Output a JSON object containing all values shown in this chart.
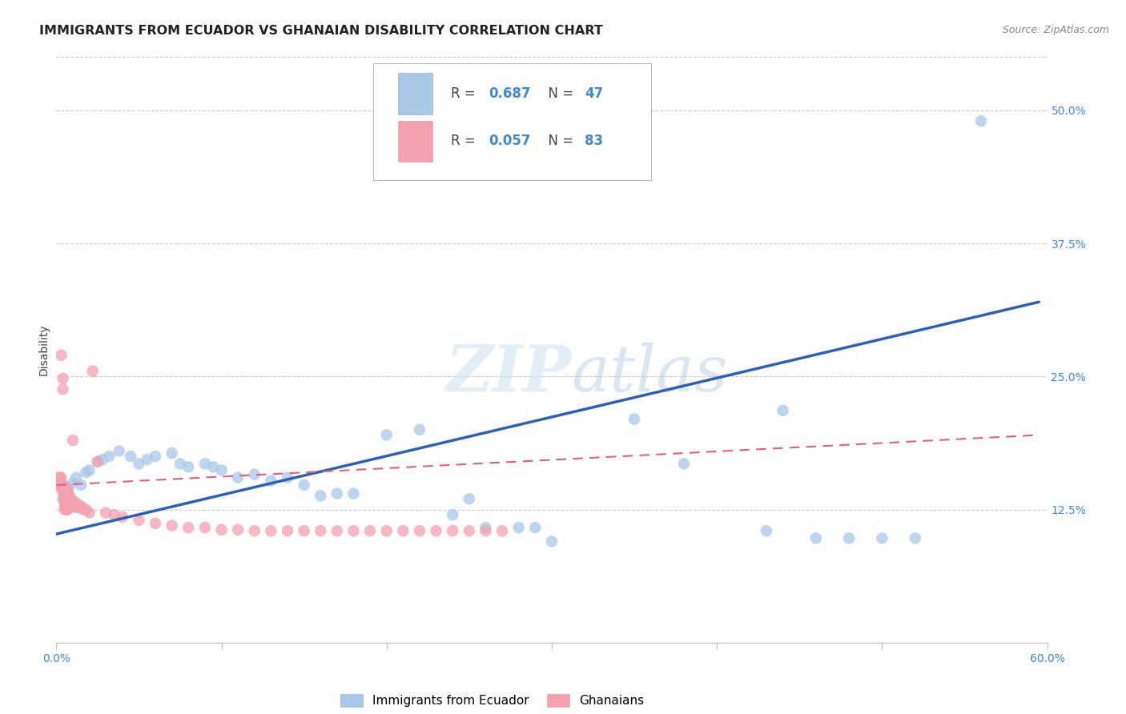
{
  "title": "IMMIGRANTS FROM ECUADOR VS GHANAIAN DISABILITY CORRELATION CHART",
  "source": "Source: ZipAtlas.com",
  "ylabel": "Disability",
  "watermark": "ZIPatlas",
  "xlim": [
    0.0,
    0.6
  ],
  "ylim": [
    0.0,
    0.55
  ],
  "xticks": [
    0.0,
    0.1,
    0.2,
    0.3,
    0.4,
    0.5,
    0.6
  ],
  "yticks": [
    0.125,
    0.25,
    0.375,
    0.5
  ],
  "ytick_labels": [
    "12.5%",
    "25.0%",
    "37.5%",
    "50.0%"
  ],
  "xtick_labels": [
    "0.0%",
    "",
    "",
    "",
    "",
    "",
    "60.0%"
  ],
  "ecuador_color": "#a8c8e8",
  "ghana_color": "#f4a0b0",
  "ecuador_line_color": "#3060b0",
  "ghana_line_color": "#e06080",
  "ecuador_scatter": [
    [
      0.004,
      0.135
    ],
    [
      0.007,
      0.145
    ],
    [
      0.01,
      0.15
    ],
    [
      0.012,
      0.155
    ],
    [
      0.015,
      0.148
    ],
    [
      0.018,
      0.16
    ],
    [
      0.02,
      0.162
    ],
    [
      0.025,
      0.17
    ],
    [
      0.028,
      0.172
    ],
    [
      0.032,
      0.175
    ],
    [
      0.038,
      0.18
    ],
    [
      0.045,
      0.175
    ],
    [
      0.05,
      0.168
    ],
    [
      0.055,
      0.172
    ],
    [
      0.06,
      0.175
    ],
    [
      0.07,
      0.178
    ],
    [
      0.075,
      0.168
    ],
    [
      0.08,
      0.165
    ],
    [
      0.09,
      0.168
    ],
    [
      0.095,
      0.165
    ],
    [
      0.1,
      0.162
    ],
    [
      0.11,
      0.155
    ],
    [
      0.12,
      0.158
    ],
    [
      0.13,
      0.152
    ],
    [
      0.14,
      0.155
    ],
    [
      0.15,
      0.148
    ],
    [
      0.16,
      0.138
    ],
    [
      0.17,
      0.14
    ],
    [
      0.18,
      0.14
    ],
    [
      0.2,
      0.195
    ],
    [
      0.22,
      0.2
    ],
    [
      0.24,
      0.12
    ],
    [
      0.25,
      0.135
    ],
    [
      0.26,
      0.108
    ],
    [
      0.28,
      0.108
    ],
    [
      0.29,
      0.108
    ],
    [
      0.3,
      0.095
    ],
    [
      0.35,
      0.21
    ],
    [
      0.38,
      0.168
    ],
    [
      0.43,
      0.105
    ],
    [
      0.44,
      0.218
    ],
    [
      0.46,
      0.098
    ],
    [
      0.48,
      0.098
    ],
    [
      0.5,
      0.098
    ],
    [
      0.52,
      0.098
    ],
    [
      0.56,
      0.49
    ]
  ],
  "ghana_scatter": [
    [
      0.001,
      0.155
    ],
    [
      0.002,
      0.155
    ],
    [
      0.002,
      0.152
    ],
    [
      0.002,
      0.148
    ],
    [
      0.003,
      0.155
    ],
    [
      0.003,
      0.15
    ],
    [
      0.003,
      0.148
    ],
    [
      0.003,
      0.145
    ],
    [
      0.003,
      0.27
    ],
    [
      0.004,
      0.148
    ],
    [
      0.004,
      0.145
    ],
    [
      0.004,
      0.142
    ],
    [
      0.004,
      0.248
    ],
    [
      0.004,
      0.238
    ],
    [
      0.005,
      0.145
    ],
    [
      0.005,
      0.142
    ],
    [
      0.005,
      0.14
    ],
    [
      0.005,
      0.138
    ],
    [
      0.005,
      0.135
    ],
    [
      0.005,
      0.132
    ],
    [
      0.005,
      0.128
    ],
    [
      0.005,
      0.125
    ],
    [
      0.006,
      0.145
    ],
    [
      0.006,
      0.142
    ],
    [
      0.006,
      0.138
    ],
    [
      0.006,
      0.135
    ],
    [
      0.006,
      0.132
    ],
    [
      0.006,
      0.128
    ],
    [
      0.006,
      0.125
    ],
    [
      0.007,
      0.142
    ],
    [
      0.007,
      0.138
    ],
    [
      0.007,
      0.135
    ],
    [
      0.007,
      0.132
    ],
    [
      0.007,
      0.128
    ],
    [
      0.007,
      0.125
    ],
    [
      0.008,
      0.138
    ],
    [
      0.008,
      0.135
    ],
    [
      0.008,
      0.132
    ],
    [
      0.008,
      0.128
    ],
    [
      0.009,
      0.135
    ],
    [
      0.009,
      0.132
    ],
    [
      0.009,
      0.128
    ],
    [
      0.01,
      0.132
    ],
    [
      0.01,
      0.128
    ],
    [
      0.01,
      0.19
    ],
    [
      0.011,
      0.132
    ],
    [
      0.011,
      0.128
    ],
    [
      0.012,
      0.13
    ],
    [
      0.012,
      0.127
    ],
    [
      0.013,
      0.13
    ],
    [
      0.014,
      0.128
    ],
    [
      0.015,
      0.128
    ],
    [
      0.016,
      0.125
    ],
    [
      0.018,
      0.125
    ],
    [
      0.02,
      0.122
    ],
    [
      0.022,
      0.255
    ],
    [
      0.025,
      0.17
    ],
    [
      0.03,
      0.122
    ],
    [
      0.035,
      0.12
    ],
    [
      0.04,
      0.118
    ],
    [
      0.05,
      0.115
    ],
    [
      0.06,
      0.112
    ],
    [
      0.07,
      0.11
    ],
    [
      0.08,
      0.108
    ],
    [
      0.09,
      0.108
    ],
    [
      0.1,
      0.106
    ],
    [
      0.11,
      0.106
    ],
    [
      0.12,
      0.105
    ],
    [
      0.13,
      0.105
    ],
    [
      0.14,
      0.105
    ],
    [
      0.15,
      0.105
    ],
    [
      0.16,
      0.105
    ],
    [
      0.17,
      0.105
    ],
    [
      0.18,
      0.105
    ],
    [
      0.19,
      0.105
    ],
    [
      0.2,
      0.105
    ],
    [
      0.21,
      0.105
    ],
    [
      0.22,
      0.105
    ],
    [
      0.23,
      0.105
    ],
    [
      0.24,
      0.105
    ],
    [
      0.25,
      0.105
    ],
    [
      0.26,
      0.105
    ],
    [
      0.27,
      0.105
    ]
  ],
  "ecuador_line_x": [
    0.0,
    0.595
  ],
  "ecuador_line_y": [
    0.102,
    0.32
  ],
  "ghana_line_x": [
    0.0,
    0.595
  ],
  "ghana_line_y": [
    0.148,
    0.195
  ],
  "background_color": "#ffffff",
  "grid_color": "#cccccc",
  "title_fontsize": 11.5,
  "source_fontsize": 9,
  "axis_label_fontsize": 10,
  "tick_fontsize": 10,
  "legend_fontsize": 12
}
